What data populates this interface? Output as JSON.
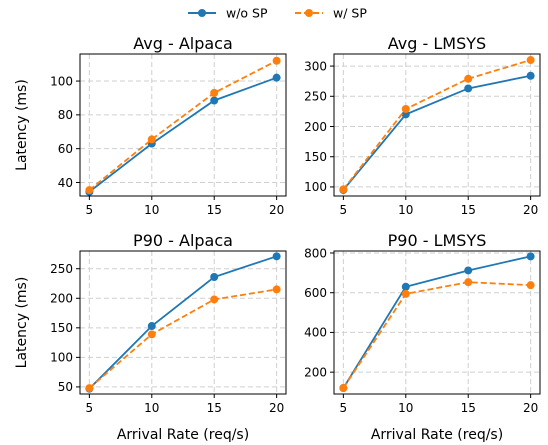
{
  "legend": {
    "placement": "top-center",
    "entries": [
      "w/o SP",
      "w/ SP"
    ]
  },
  "colors": {
    "w/o SP": "#1f77b4",
    "w/ SP": "#ff7f0e"
  },
  "chart_data": [
    {
      "type": "line",
      "title": "Avg - Alpaca",
      "xlabel": "",
      "ylabel": "Latency (ms)",
      "x": [
        5,
        10,
        15,
        20
      ],
      "xlim": [
        4.25,
        20.75
      ],
      "ylim": [
        32,
        116
      ],
      "yticks": [
        40,
        60,
        80,
        100
      ],
      "grid": true,
      "series": [
        {
          "name": "w/o SP",
          "values": [
            34.5,
            63,
            88.5,
            102
          ]
        },
        {
          "name": "w/ SP",
          "values": [
            35.5,
            65.5,
            93,
            112
          ]
        }
      ]
    },
    {
      "type": "line",
      "title": "Avg - LMSYS",
      "xlabel": "",
      "ylabel": "",
      "x": [
        5,
        10,
        15,
        20
      ],
      "xlim": [
        4.25,
        20.75
      ],
      "ylim": [
        85,
        320
      ],
      "yticks": [
        100,
        150,
        200,
        250,
        300
      ],
      "grid": true,
      "series": [
        {
          "name": "w/o SP",
          "values": [
            95,
            220,
            263,
            284
          ]
        },
        {
          "name": "w/ SP",
          "values": [
            96,
            229,
            279,
            310
          ]
        }
      ]
    },
    {
      "type": "line",
      "title": "P90 - Alpaca",
      "xlabel": "Arrival Rate (req/s)",
      "ylabel": "Latency (ms)",
      "x": [
        5,
        10,
        15,
        20
      ],
      "xlim": [
        4.25,
        20.75
      ],
      "ylim": [
        38,
        280
      ],
      "yticks": [
        50,
        100,
        150,
        200,
        250
      ],
      "grid": true,
      "series": [
        {
          "name": "w/o SP",
          "values": [
            47,
            153,
            236,
            271
          ]
        },
        {
          "name": "w/ SP",
          "values": [
            48,
            139,
            198,
            215
          ]
        }
      ]
    },
    {
      "type": "line",
      "title": "P90 - LMSYS",
      "xlabel": "Arrival Rate (req/s)",
      "ylabel": "",
      "x": [
        5,
        10,
        15,
        20
      ],
      "xlim": [
        4.25,
        20.75
      ],
      "ylim": [
        90,
        810
      ],
      "yticks": [
        200,
        400,
        600,
        800
      ],
      "grid": true,
      "series": [
        {
          "name": "w/o SP",
          "values": [
            120,
            630,
            712,
            783
          ]
        },
        {
          "name": "w/ SP",
          "values": [
            120,
            594,
            653,
            638
          ]
        }
      ]
    }
  ]
}
